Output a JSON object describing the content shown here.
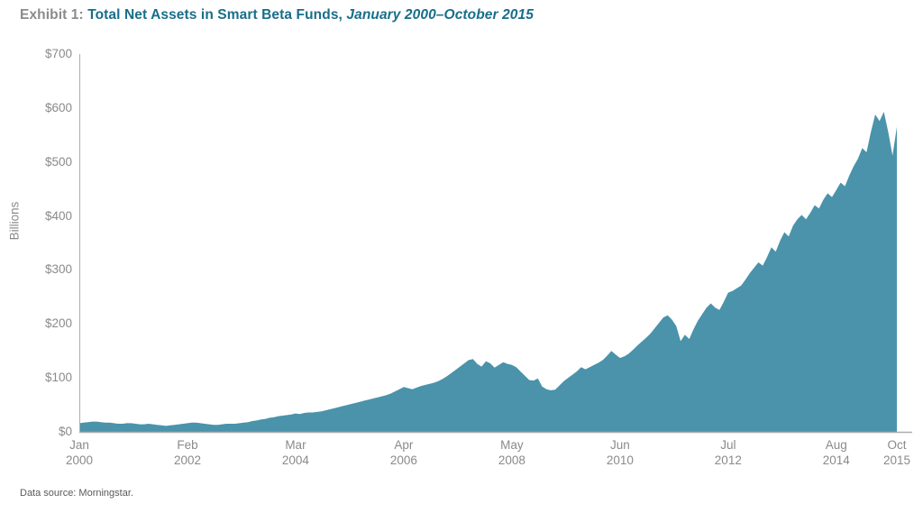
{
  "title": {
    "prefix": "Exhibit 1:",
    "main": "Total Net Assets in Smart Beta Funds,",
    "period": "January 2000–October 2015"
  },
  "footer": {
    "source": "Data source: Morningstar."
  },
  "colors": {
    "area_fill": "#4A93AB",
    "title_accent": "#186E89",
    "title_prefix": "#8B8B8B",
    "axis_text": "#8A8A8A",
    "axis_line": "#ADADAD"
  },
  "chart_data": {
    "type": "area",
    "title": "Total Net Assets in Smart Beta Funds, January 2000–October 2015",
    "ylabel": "Billions",
    "xlabel": "",
    "ylim": [
      0,
      700
    ],
    "grid": false,
    "legend": "none",
    "fill_color": "#4A93AB",
    "y_ticks": [
      "$0",
      "$100",
      "$200",
      "$300",
      "$400",
      "$500",
      "$600",
      "$700"
    ],
    "y_tick_values": [
      0,
      100,
      200,
      300,
      400,
      500,
      600,
      700
    ],
    "x_ticks": [
      {
        "month": "Jan",
        "year": "2000",
        "index": 0
      },
      {
        "month": "Feb",
        "year": "2002",
        "index": 25
      },
      {
        "month": "Mar",
        "year": "2004",
        "index": 50
      },
      {
        "month": "Apr",
        "year": "2006",
        "index": 75
      },
      {
        "month": "May",
        "year": "2008",
        "index": 100
      },
      {
        "month": "Jun",
        "year": "2010",
        "index": 125
      },
      {
        "month": "Jul",
        "year": "2012",
        "index": 150
      },
      {
        "month": "Aug",
        "year": "2014",
        "index": 175
      },
      {
        "month": "Oct",
        "year": "2015",
        "index": 189
      }
    ],
    "x_start": "2000-01",
    "x_end": "2015-10",
    "x_frequency": "monthly",
    "series": [
      {
        "name": "Total net assets (USD billions)",
        "values": [
          16,
          17,
          18,
          19,
          19,
          18,
          17,
          17,
          16,
          15,
          15,
          16,
          16,
          15,
          14,
          14,
          15,
          14,
          13,
          12,
          11,
          12,
          13,
          14,
          15,
          16,
          17,
          17,
          16,
          15,
          14,
          13,
          13,
          14,
          15,
          15,
          15,
          16,
          17,
          18,
          20,
          21,
          23,
          24,
          26,
          27,
          29,
          30,
          31,
          32,
          34,
          33,
          35,
          36,
          36,
          37,
          38,
          40,
          42,
          44,
          46,
          48,
          50,
          52,
          54,
          56,
          58,
          60,
          62,
          64,
          66,
          68,
          71,
          75,
          79,
          83,
          81,
          79,
          82,
          85,
          87,
          89,
          91,
          94,
          98,
          103,
          109,
          115,
          121,
          127,
          133,
          135,
          126,
          121,
          131,
          127,
          119,
          124,
          129,
          126,
          124,
          120,
          112,
          104,
          96,
          95,
          99,
          84,
          79,
          77,
          78,
          86,
          94,
          100,
          106,
          112,
          120,
          116,
          120,
          124,
          128,
          133,
          141,
          150,
          143,
          137,
          140,
          145,
          152,
          160,
          167,
          174,
          182,
          192,
          202,
          212,
          216,
          208,
          196,
          168,
          180,
          172,
          190,
          206,
          218,
          230,
          238,
          230,
          226,
          241,
          258,
          261,
          266,
          271,
          282,
          294,
          304,
          314,
          308,
          324,
          342,
          334,
          354,
          370,
          362,
          382,
          394,
          402,
          394,
          406,
          420,
          414,
          430,
          442,
          435,
          448,
          462,
          455,
          475,
          492,
          506,
          526,
          518,
          556,
          588,
          576,
          593,
          556,
          512,
          565
        ]
      }
    ]
  }
}
